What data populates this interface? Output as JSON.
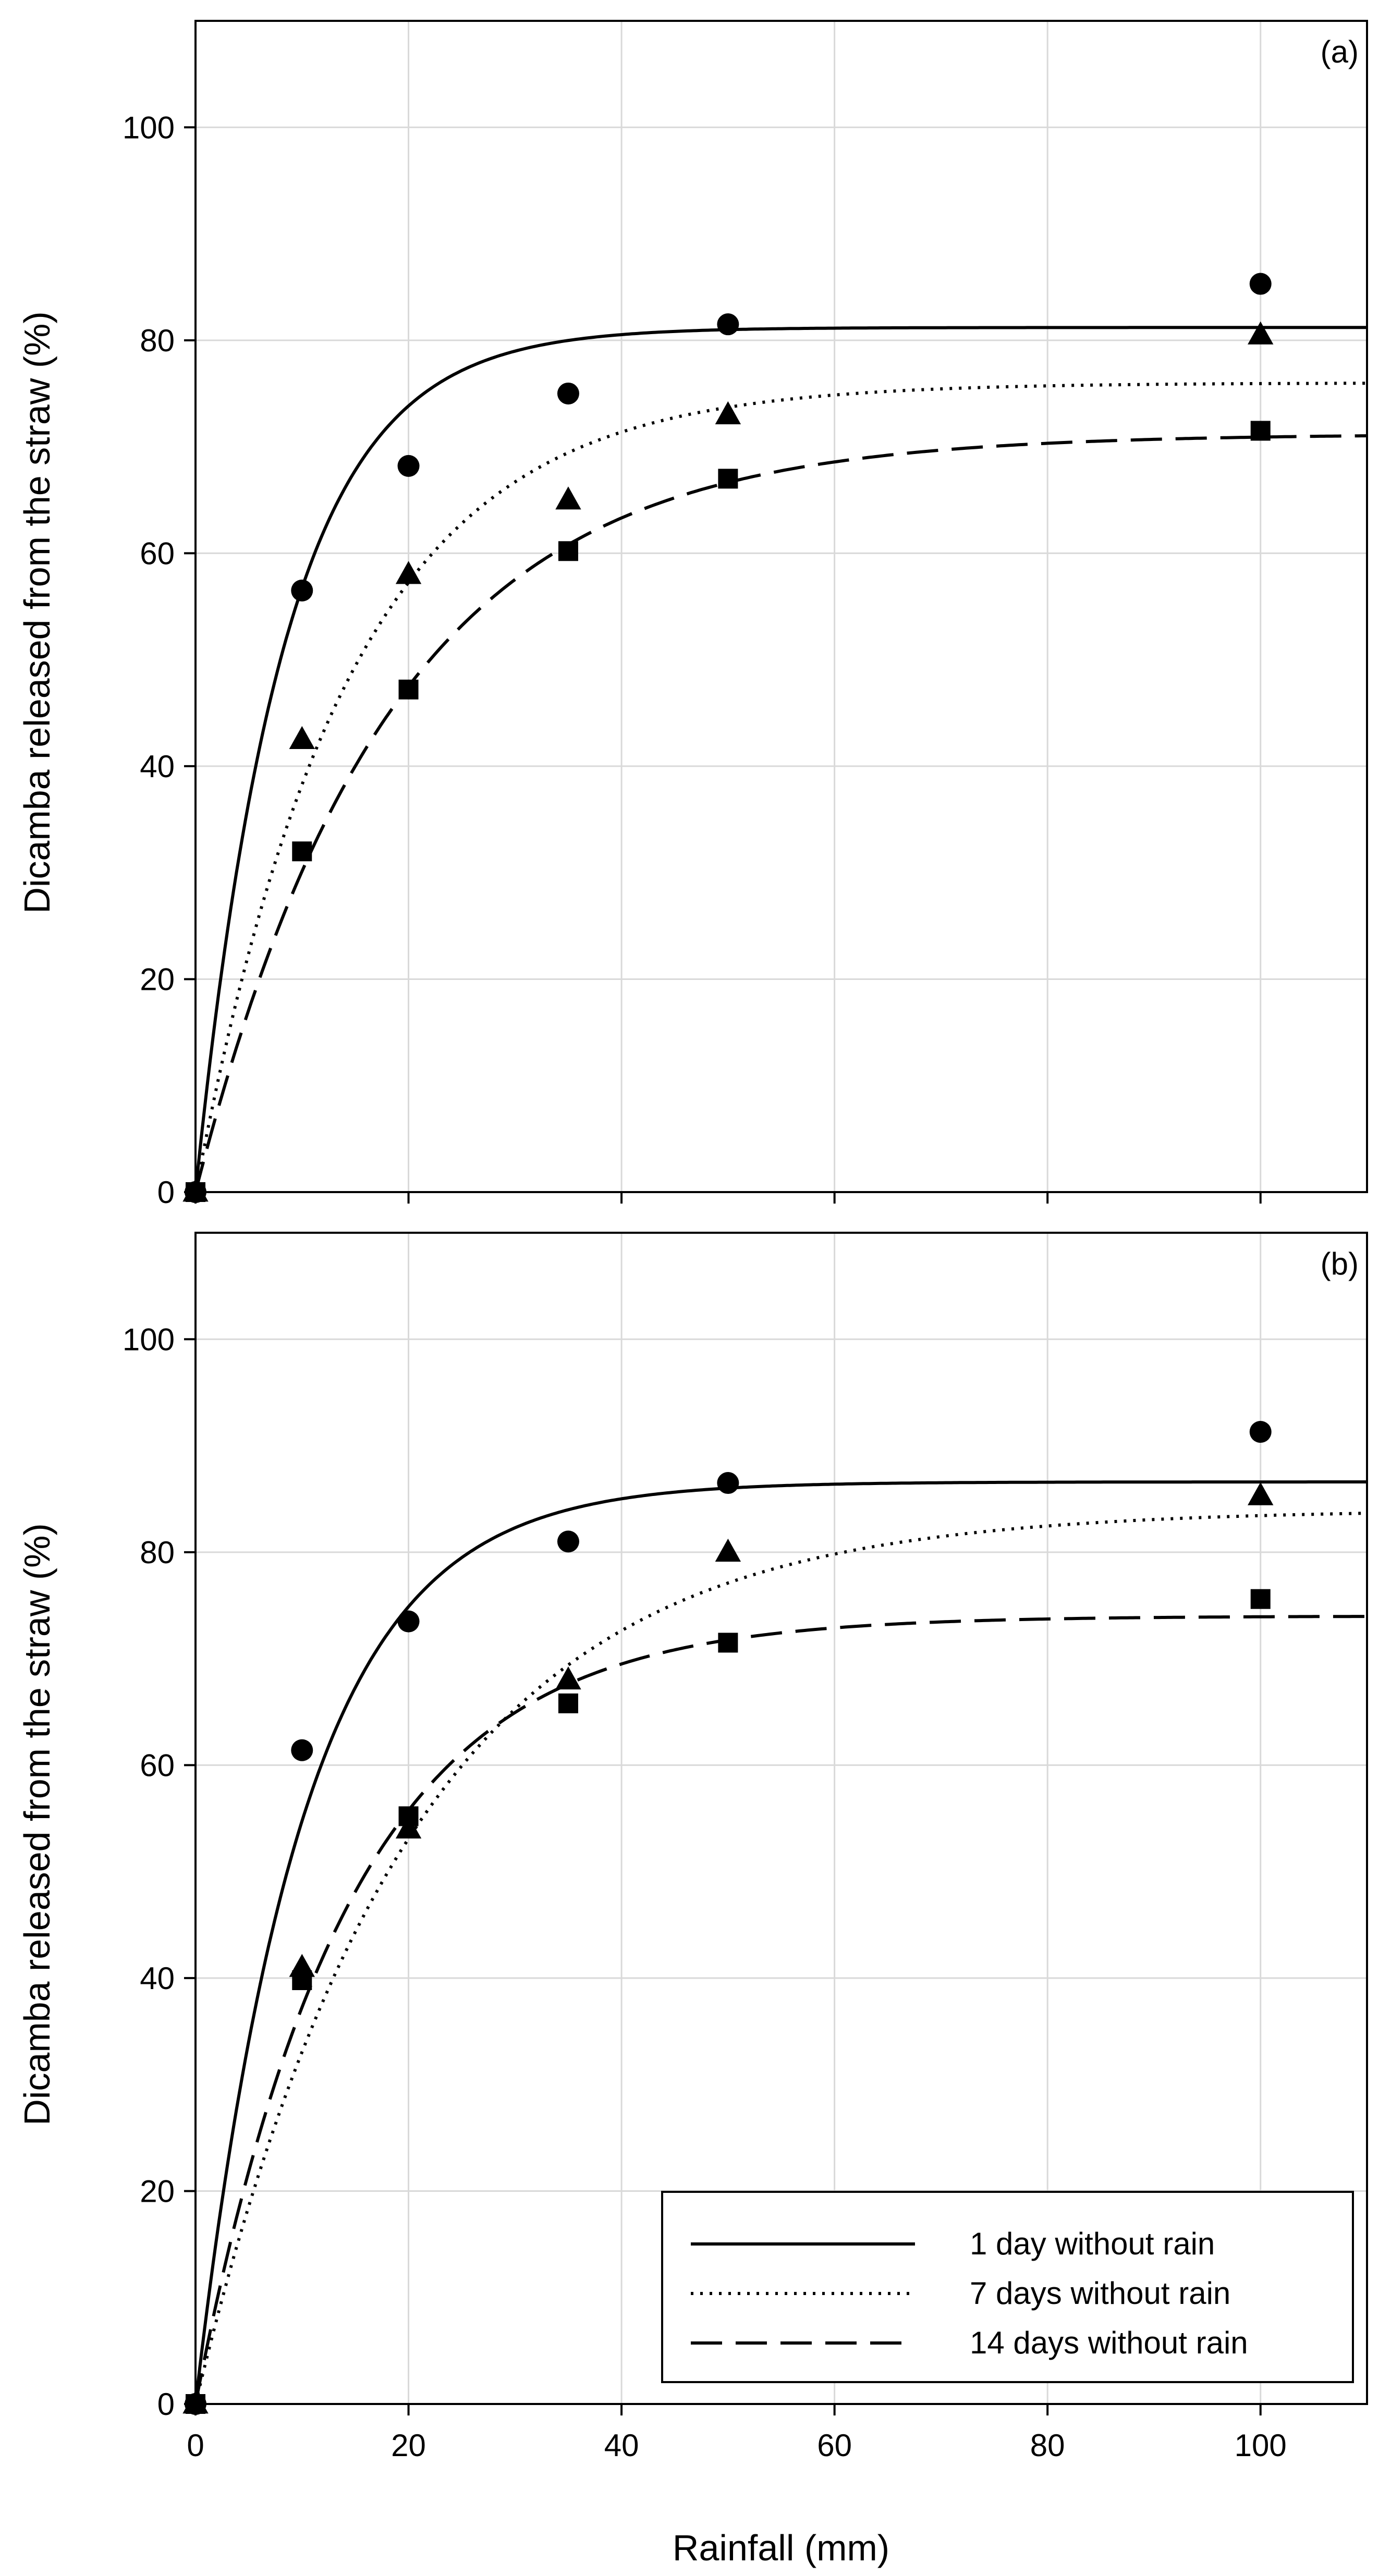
{
  "chart_data": {
    "type": "scatter",
    "xlabel": "Rainfall (mm)",
    "ylabel": "Dicamba released from the straw (%)",
    "xlim": [
      0,
      110
    ],
    "ylim": [
      0,
      110
    ],
    "xticks": [
      0,
      20,
      40,
      60,
      80,
      100
    ],
    "yticks": [
      0,
      20,
      40,
      60,
      80,
      100
    ],
    "grid": true,
    "legend_position": "bottom-right (panel b)",
    "panels": [
      {
        "label": "(a)",
        "series": [
          {
            "name": "1 day without rain",
            "marker": "circle",
            "line": "solid",
            "x": [
              0,
              10,
              20,
              35,
              50,
              100
            ],
            "y": [
              0,
              56.5,
              68.2,
              75.0,
              81.5,
              85.3
            ],
            "fit": {
              "max": 81.2,
              "k": 0.12
            }
          },
          {
            "name": "7 days without rain",
            "marker": "triangle",
            "line": "dotted",
            "x": [
              0,
              10,
              20,
              35,
              50,
              100
            ],
            "y": [
              0,
              42.5,
              58.0,
              65.0,
              73.0,
              80.5
            ],
            "fit": {
              "max": 76.0,
              "k": 0.07
            }
          },
          {
            "name": "14 days without rain",
            "marker": "square",
            "line": "dashed",
            "x": [
              0,
              10,
              20,
              35,
              50,
              100
            ],
            "y": [
              0,
              32.0,
              47.2,
              60.2,
              67.0,
              71.5
            ],
            "fit": {
              "max": 71.2,
              "k": 0.055
            }
          }
        ]
      },
      {
        "label": "(b)",
        "series": [
          {
            "name": "1 day without rain",
            "marker": "circle",
            "line": "solid",
            "x": [
              0,
              10,
              20,
              35,
              50,
              100
            ],
            "y": [
              0,
              61.4,
              73.5,
              81.0,
              86.5,
              91.3
            ],
            "fit": {
              "max": 86.6,
              "k": 0.1
            }
          },
          {
            "name": "7 days without rain",
            "marker": "triangle",
            "line": "dotted",
            "x": [
              0,
              10,
              20,
              35,
              50,
              100
            ],
            "y": [
              0,
              41.0,
              54.0,
              68.0,
              80.0,
              85.3
            ],
            "fit": {
              "max": 84.0,
              "k": 0.05
            }
          },
          {
            "name": "14 days without rain",
            "marker": "square",
            "line": "dashed",
            "x": [
              0,
              10,
              20,
              35,
              50,
              100
            ],
            "y": [
              0,
              39.8,
              55.2,
              65.8,
              71.5,
              75.6
            ],
            "fit": {
              "max": 74.0,
              "k": 0.07
            }
          }
        ]
      }
    ],
    "legend": [
      {
        "label": "1 day without rain",
        "line": "solid"
      },
      {
        "label": "7 days without rain",
        "line": "dotted"
      },
      {
        "label": "14 days without rain",
        "line": "dashed"
      }
    ]
  }
}
